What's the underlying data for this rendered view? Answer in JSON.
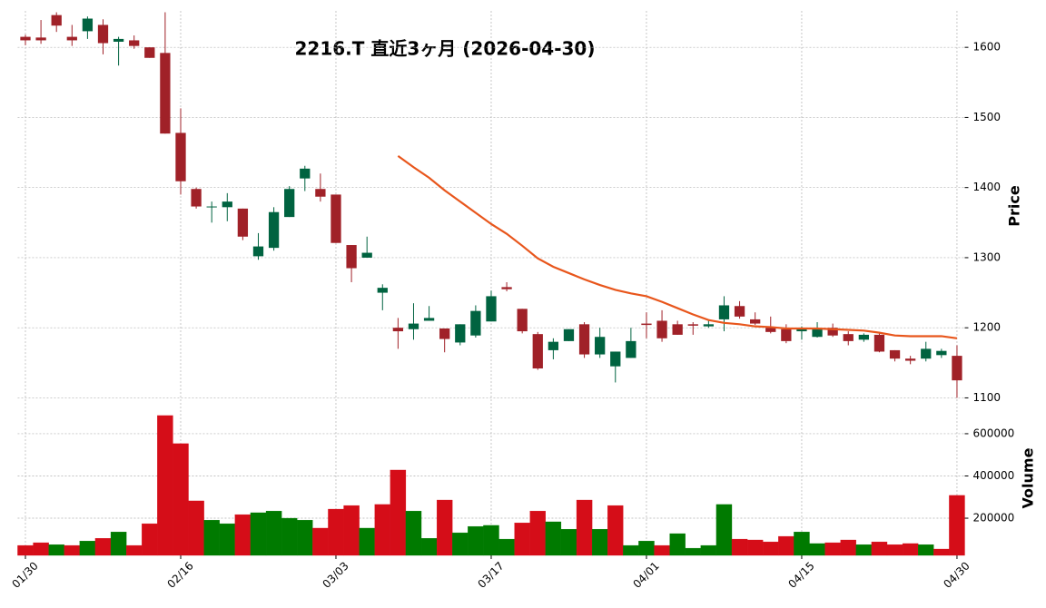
{
  "chart_data": {
    "type": "candlestick",
    "title": "2216.T  直近3ヶ月  (2026-04-30)",
    "ylabel": "Price",
    "volume_label": "Volume",
    "categories": [
      "01/30",
      null,
      null,
      null,
      null,
      null,
      null,
      null,
      null,
      null,
      "02/16",
      null,
      null,
      null,
      null,
      null,
      null,
      null,
      null,
      null,
      "03/03",
      null,
      null,
      null,
      null,
      null,
      null,
      null,
      null,
      null,
      "03/17",
      null,
      null,
      null,
      null,
      null,
      null,
      null,
      null,
      null,
      "04/01",
      null,
      null,
      null,
      null,
      null,
      null,
      null,
      null,
      null,
      "04/15",
      null,
      null,
      null,
      null,
      null,
      null,
      null,
      null,
      null,
      "04/30"
    ],
    "open": [
      1615,
      1614,
      1646,
      1615,
      1623,
      1632,
      1608,
      1610,
      1600,
      1592,
      1478,
      1398,
      1372,
      1372,
      1370,
      1302,
      1314,
      1358,
      1413,
      1398,
      1390,
      1318,
      1300,
      1250,
      1200,
      1198,
      1210,
      1199,
      1179,
      1189,
      1209,
      1258,
      1227,
      1191,
      1168,
      1181,
      1205,
      1162,
      1145,
      1157,
      1206,
      1210,
      1205,
      1205,
      1202,
      1212,
      1231,
      1212,
      1200,
      1198,
      1195,
      1187,
      1200,
      1191,
      1183,
      1190,
      1168,
      1156,
      1156,
      1161,
      1160
    ],
    "high": [
      1618,
      1639,
      1650,
      1632,
      1644,
      1640,
      1615,
      1617,
      1600,
      1650,
      1513,
      1400,
      1380,
      1392,
      1370,
      1335,
      1372,
      1402,
      1431,
      1420,
      1390,
      1318,
      1330,
      1262,
      1214,
      1235,
      1231,
      1199,
      1205,
      1232,
      1253,
      1265,
      1227,
      1194,
      1185,
      1198,
      1208,
      1200,
      1166,
      1200,
      1222,
      1225,
      1210,
      1208,
      1210,
      1245,
      1238,
      1222,
      1216,
      1205,
      1202,
      1208,
      1206,
      1195,
      1192,
      1192,
      1168,
      1160,
      1180,
      1170,
      1175
    ],
    "low": [
      1603,
      1605,
      1622,
      1602,
      1612,
      1590,
      1574,
      1598,
      1585,
      1477,
      1390,
      1370,
      1350,
      1352,
      1325,
      1297,
      1310,
      1358,
      1395,
      1380,
      1321,
      1265,
      1300,
      1225,
      1170,
      1183,
      1210,
      1165,
      1175,
      1186,
      1209,
      1252,
      1192,
      1140,
      1155,
      1181,
      1157,
      1157,
      1122,
      1157,
      1185,
      1180,
      1190,
      1190,
      1200,
      1195,
      1213,
      1204,
      1192,
      1178,
      1183,
      1186,
      1187,
      1175,
      1180,
      1165,
      1152,
      1148,
      1152,
      1157,
      1100
    ],
    "close": [
      1610,
      1610,
      1631,
      1610,
      1641,
      1606,
      1612,
      1602,
      1585,
      1477,
      1409,
      1373,
      1373,
      1380,
      1330,
      1316,
      1365,
      1398,
      1427,
      1387,
      1321,
      1285,
      1307,
      1257,
      1195,
      1206,
      1214,
      1184,
      1205,
      1224,
      1245,
      1255,
      1195,
      1142,
      1180,
      1198,
      1162,
      1187,
      1166,
      1181,
      1204,
      1185,
      1190,
      1203,
      1205,
      1232,
      1216,
      1206,
      1194,
      1181,
      1200,
      1198,
      1189,
      1181,
      1190,
      1166,
      1156,
      1153,
      1170,
      1167,
      1125
    ],
    "up_color": "#006340",
    "down_color": "#a02128",
    "moving_average": {
      "color": "#e8561c",
      "values": [
        null,
        null,
        null,
        null,
        null,
        null,
        null,
        null,
        null,
        null,
        null,
        null,
        null,
        null,
        null,
        null,
        null,
        null,
        null,
        null,
        null,
        null,
        null,
        null,
        1445,
        1429,
        1414,
        1396,
        1380,
        1364,
        1348,
        1334,
        1317,
        1299,
        1287,
        1278,
        1269,
        1261,
        1254,
        1249,
        1245,
        1237,
        1228,
        1219,
        1211,
        1207,
        1205,
        1202,
        1201,
        1199,
        1199,
        1199,
        1198,
        1197,
        1196,
        1193,
        1189,
        1188,
        1188,
        1188,
        1185
      ]
    },
    "volume": {
      "values": [
        71000,
        84000,
        75000,
        71000,
        92000,
        105000,
        135000,
        71000,
        174000,
        686000,
        553000,
        282000,
        191000,
        174000,
        217000,
        226000,
        234000,
        200000,
        191000,
        153000,
        243000,
        260000,
        153000,
        265000,
        428000,
        234000,
        105000,
        286000,
        131000,
        161000,
        166000,
        101000,
        178000,
        234000,
        183000,
        148000,
        286000,
        148000,
        260000,
        71000,
        92000,
        71000,
        127000,
        58000,
        71000,
        265000,
        101000,
        97000,
        88000,
        114000,
        135000,
        80000,
        84000,
        97000,
        75000,
        88000,
        75000,
        80000,
        75000,
        54000,
        308000
      ],
      "colors": [
        "#d50d18",
        "#d50d18",
        "#007a00",
        "#d50d18",
        "#007a00",
        "#d50d18",
        "#007a00",
        "#d50d18",
        "#d50d18",
        "#d50d18",
        "#d50d18",
        "#d50d18",
        "#007a00",
        "#007a00",
        "#d50d18",
        "#007a00",
        "#007a00",
        "#007a00",
        "#007a00",
        "#d50d18",
        "#d50d18",
        "#d50d18",
        "#007a00",
        "#d50d18",
        "#d50d18",
        "#007a00",
        "#007a00",
        "#d50d18",
        "#007a00",
        "#007a00",
        "#007a00",
        "#007a00",
        "#d50d18",
        "#d50d18",
        "#007a00",
        "#007a00",
        "#d50d18",
        "#007a00",
        "#d50d18",
        "#007a00",
        "#007a00",
        "#d50d18",
        "#007a00",
        "#007a00",
        "#007a00",
        "#007a00",
        "#d50d18",
        "#d50d18",
        "#d50d18",
        "#d50d18",
        "#007a00",
        "#007a00",
        "#d50d18",
        "#d50d18",
        "#007a00",
        "#d50d18",
        "#d50d18",
        "#d50d18",
        "#007a00",
        "#d50d18",
        "#d50d18"
      ]
    },
    "ylim": [
      1098,
      1652
    ],
    "yticks": [
      1100,
      1200,
      1300,
      1400,
      1500,
      1600
    ],
    "volume_ylim": [
      24000,
      763000
    ],
    "volume_yticks": [
      200000,
      400000,
      600000
    ],
    "grid": true
  }
}
